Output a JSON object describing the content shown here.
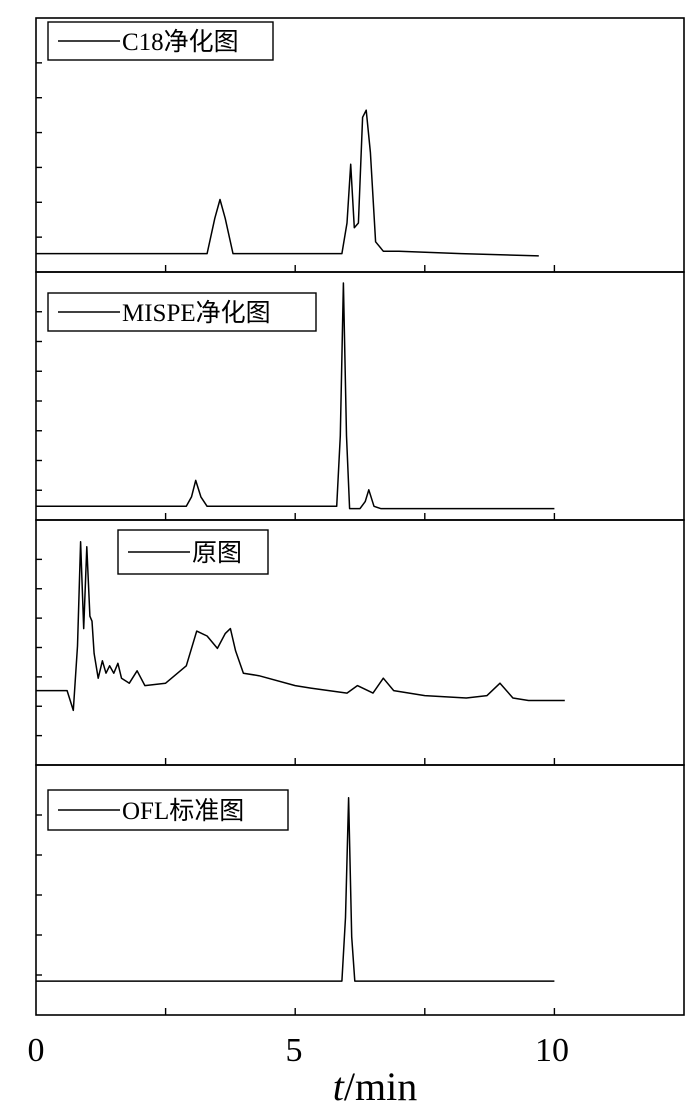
{
  "chart_data": {
    "type": "line",
    "xlabel_italic": "t",
    "xlabel_unit": "/min",
    "xlim": [
      0,
      12.5
    ],
    "x_ticks": [
      0,
      5,
      10
    ],
    "x_tick_labels": [
      "0",
      "5",
      "10"
    ],
    "grid": false,
    "legend_placement": "top-left",
    "panels": [
      {
        "name": "C18净化图",
        "x": [
          0,
          3.3,
          3.45,
          3.55,
          3.65,
          3.8,
          5.9,
          6.0,
          6.07,
          6.14,
          6.22,
          6.3,
          6.37,
          6.45,
          6.55,
          6.7,
          7.0,
          8.2,
          9.7
        ],
        "y": [
          0.07,
          0.07,
          0.22,
          0.3,
          0.22,
          0.07,
          0.07,
          0.2,
          0.45,
          0.18,
          0.2,
          0.65,
          0.68,
          0.5,
          0.12,
          0.08,
          0.08,
          0.07,
          0.06
        ]
      },
      {
        "name": "MISPE净化图",
        "x": [
          0,
          2.9,
          3.0,
          3.08,
          3.18,
          3.3,
          5.8,
          5.87,
          5.93,
          5.99,
          6.05,
          6.25,
          6.35,
          6.42,
          6.52,
          6.65,
          10.0
        ],
        "y": [
          0.05,
          0.05,
          0.09,
          0.16,
          0.09,
          0.05,
          0.05,
          0.35,
          1.0,
          0.35,
          0.04,
          0.04,
          0.07,
          0.12,
          0.05,
          0.04,
          0.04
        ]
      },
      {
        "name": "原图",
        "x": [
          0,
          0.6,
          0.72,
          0.8,
          0.86,
          0.92,
          0.98,
          1.04,
          1.08,
          1.12,
          1.2,
          1.28,
          1.35,
          1.42,
          1.5,
          1.58,
          1.65,
          1.8,
          1.95,
          2.1,
          2.5,
          2.9,
          3.1,
          3.3,
          3.5,
          3.65,
          3.75,
          3.85,
          4.0,
          4.3,
          5.0,
          5.3,
          6.0,
          6.2,
          6.5,
          6.7,
          6.9,
          7.5,
          8.3,
          8.7,
          8.95,
          9.2,
          9.5,
          10.2
        ],
        "y": [
          0.3,
          0.3,
          0.22,
          0.48,
          0.9,
          0.55,
          0.88,
          0.6,
          0.58,
          0.45,
          0.35,
          0.42,
          0.37,
          0.4,
          0.37,
          0.41,
          0.35,
          0.33,
          0.38,
          0.32,
          0.33,
          0.4,
          0.54,
          0.52,
          0.47,
          0.53,
          0.55,
          0.46,
          0.37,
          0.36,
          0.32,
          0.31,
          0.29,
          0.32,
          0.29,
          0.35,
          0.3,
          0.28,
          0.27,
          0.28,
          0.33,
          0.27,
          0.26,
          0.26
        ]
      },
      {
        "name": "OFL标准图",
        "x": [
          0,
          5.9,
          5.97,
          6.03,
          6.09,
          6.15,
          10.0
        ],
        "y": [
          0.02,
          0.02,
          0.35,
          0.97,
          0.25,
          0.02,
          0.02
        ]
      }
    ]
  }
}
